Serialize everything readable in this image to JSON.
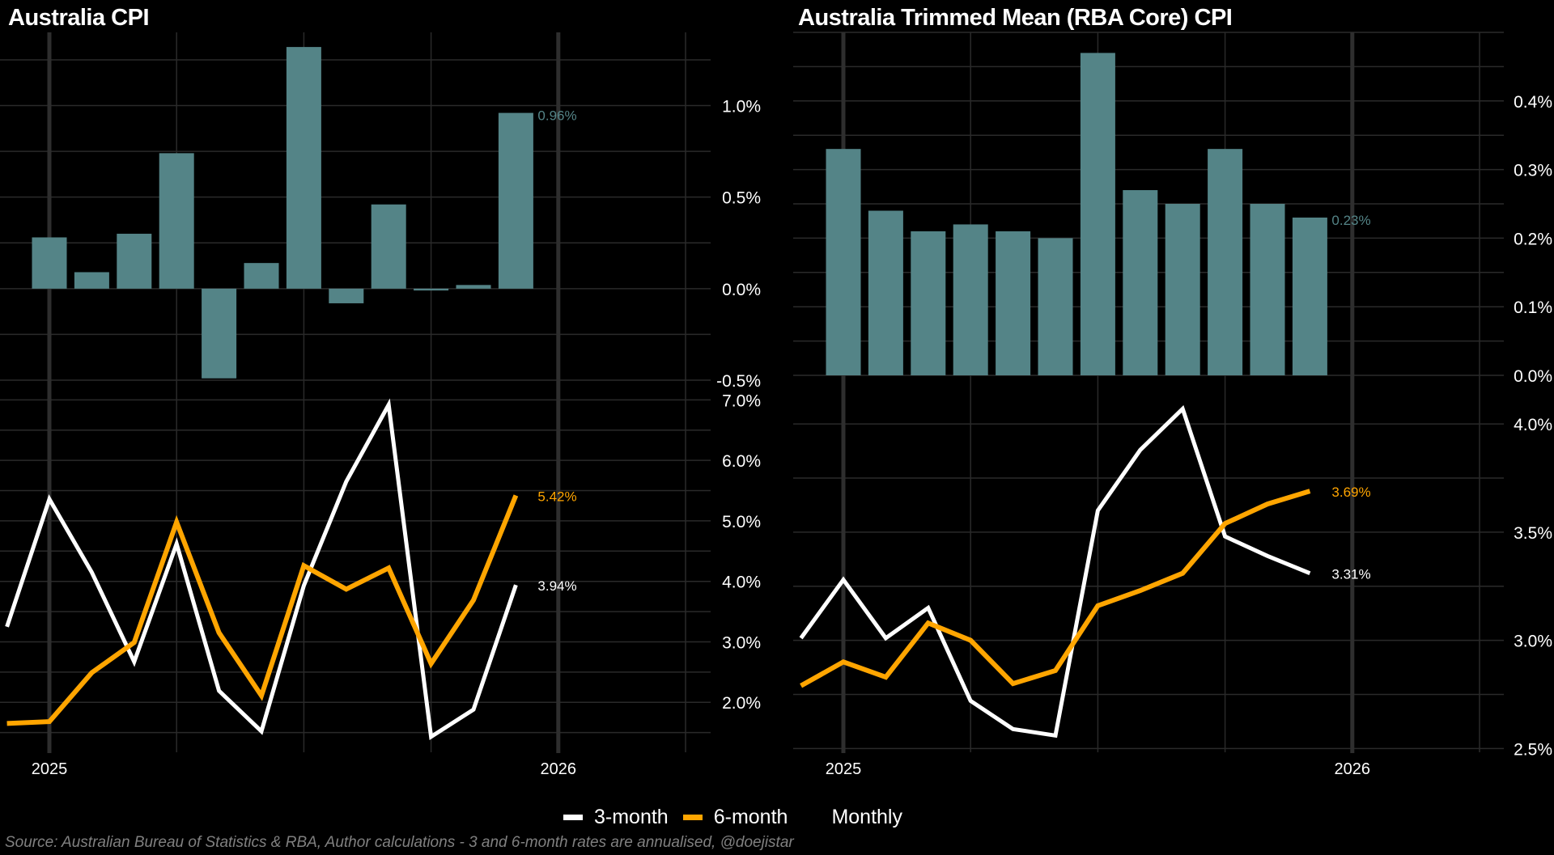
{
  "legend": {
    "items": [
      {
        "label": "3-month",
        "color": "#ffffff"
      },
      {
        "label": "6-month",
        "color": "#ffa500"
      },
      {
        "label": "Monthly",
        "color": "#000000"
      }
    ]
  },
  "source": "Source: Australian Bureau of Statistics & RBA, Author calculations - 3 and 6-month rates are annualised, @doejistar",
  "colors": {
    "bar": "#548487",
    "three_month": "#ffffff",
    "six_month": "#ffa500",
    "grid": "#2a2a2a",
    "year_line": "#2e2e2e",
    "axis_text": "#ffffff"
  },
  "chart_data": [
    {
      "id": "cpi",
      "title": "Australia CPI",
      "type": "bar+line",
      "grid": true,
      "x_tick_labels": [
        "2025",
        "2026"
      ],
      "bars": {
        "name": "Monthly",
        "months": [
          "2025-01",
          "2025-02",
          "2025-03",
          "2025-04",
          "2025-05",
          "2025-06",
          "2025-07",
          "2025-08",
          "2025-09",
          "2025-10",
          "2025-11",
          "2025-12"
        ],
        "values": [
          0.28,
          0.09,
          0.3,
          0.74,
          -0.49,
          0.14,
          1.32,
          -0.08,
          0.46,
          -0.01,
          0.02,
          0.96
        ],
        "end_label": "0.96%",
        "ylim": [
          -0.5,
          1.4
        ],
        "y_ticks": [
          -0.5,
          0.0,
          0.5,
          1.0
        ],
        "y_tick_labels": [
          "-0.5%",
          "0.0%",
          "0.5%",
          "1.0%"
        ]
      },
      "lines": {
        "months": [
          "2024-12",
          "2025-01",
          "2025-02",
          "2025-03",
          "2025-04",
          "2025-05",
          "2025-06",
          "2025-07",
          "2025-08",
          "2025-09",
          "2025-10",
          "2025-11",
          "2025-12"
        ],
        "series": [
          {
            "name": "3-month",
            "values": [
              3.25,
              5.36,
              4.15,
              2.67,
              4.62,
              2.19,
              1.52,
              3.93,
              5.65,
              6.92,
              1.43,
              1.88,
              3.94
            ],
            "end_label": "3.94%"
          },
          {
            "name": "6-month",
            "values": [
              1.65,
              1.68,
              2.49,
              2.99,
              4.98,
              3.15,
              2.11,
              4.26,
              3.87,
              4.22,
              2.64,
              3.69,
              5.42
            ],
            "end_label": "5.42%"
          }
        ],
        "ylim": [
          1.2,
          7.3
        ],
        "y_ticks": [
          2.0,
          3.0,
          4.0,
          5.0,
          6.0,
          7.0
        ],
        "y_tick_labels": [
          "2.0%",
          "3.0%",
          "4.0%",
          "5.0%",
          "6.0%",
          "7.0%"
        ]
      }
    },
    {
      "id": "core",
      "title": "Australia Trimmed Mean (RBA Core) CPI",
      "type": "bar+line",
      "grid": true,
      "x_tick_labels": [
        "2025",
        "2026"
      ],
      "bars": {
        "name": "Monthly",
        "months": [
          "2025-01",
          "2025-02",
          "2025-03",
          "2025-04",
          "2025-05",
          "2025-06",
          "2025-07",
          "2025-08",
          "2025-09",
          "2025-10",
          "2025-11",
          "2025-12"
        ],
        "values": [
          0.33,
          0.24,
          0.21,
          0.22,
          0.21,
          0.2,
          0.47,
          0.27,
          0.25,
          0.33,
          0.25,
          0.23
        ],
        "end_label": "0.23%",
        "ylim": [
          0.0,
          0.5
        ],
        "y_ticks": [
          0.0,
          0.1,
          0.2,
          0.3,
          0.4
        ],
        "y_tick_labels": [
          "0.0%",
          "0.1%",
          "0.2%",
          "0.3%",
          "0.4%"
        ]
      },
      "lines": {
        "months": [
          "2024-12",
          "2025-01",
          "2025-02",
          "2025-03",
          "2025-04",
          "2025-05",
          "2025-06",
          "2025-07",
          "2025-08",
          "2025-09",
          "2025-10",
          "2025-11",
          "2025-12"
        ],
        "series": [
          {
            "name": "3-month",
            "values": [
              3.01,
              3.28,
              3.01,
              3.15,
              2.72,
              2.59,
              2.56,
              3.6,
              3.88,
              4.07,
              3.48,
              3.39,
              3.31
            ],
            "end_label": "3.31%"
          },
          {
            "name": "6-month",
            "values": [
              2.79,
              2.9,
              2.83,
              3.08,
              3.0,
              2.8,
              2.86,
              3.16,
              3.23,
              3.31,
              3.54,
              3.63,
              3.69
            ],
            "end_label": "3.69%"
          }
        ],
        "ylim": [
          2.49,
          4.21
        ],
        "y_ticks": [
          2.5,
          3.0,
          3.5,
          4.0
        ],
        "y_tick_labels": [
          "2.5%",
          "3.0%",
          "3.5%",
          "4.0%"
        ]
      }
    }
  ]
}
